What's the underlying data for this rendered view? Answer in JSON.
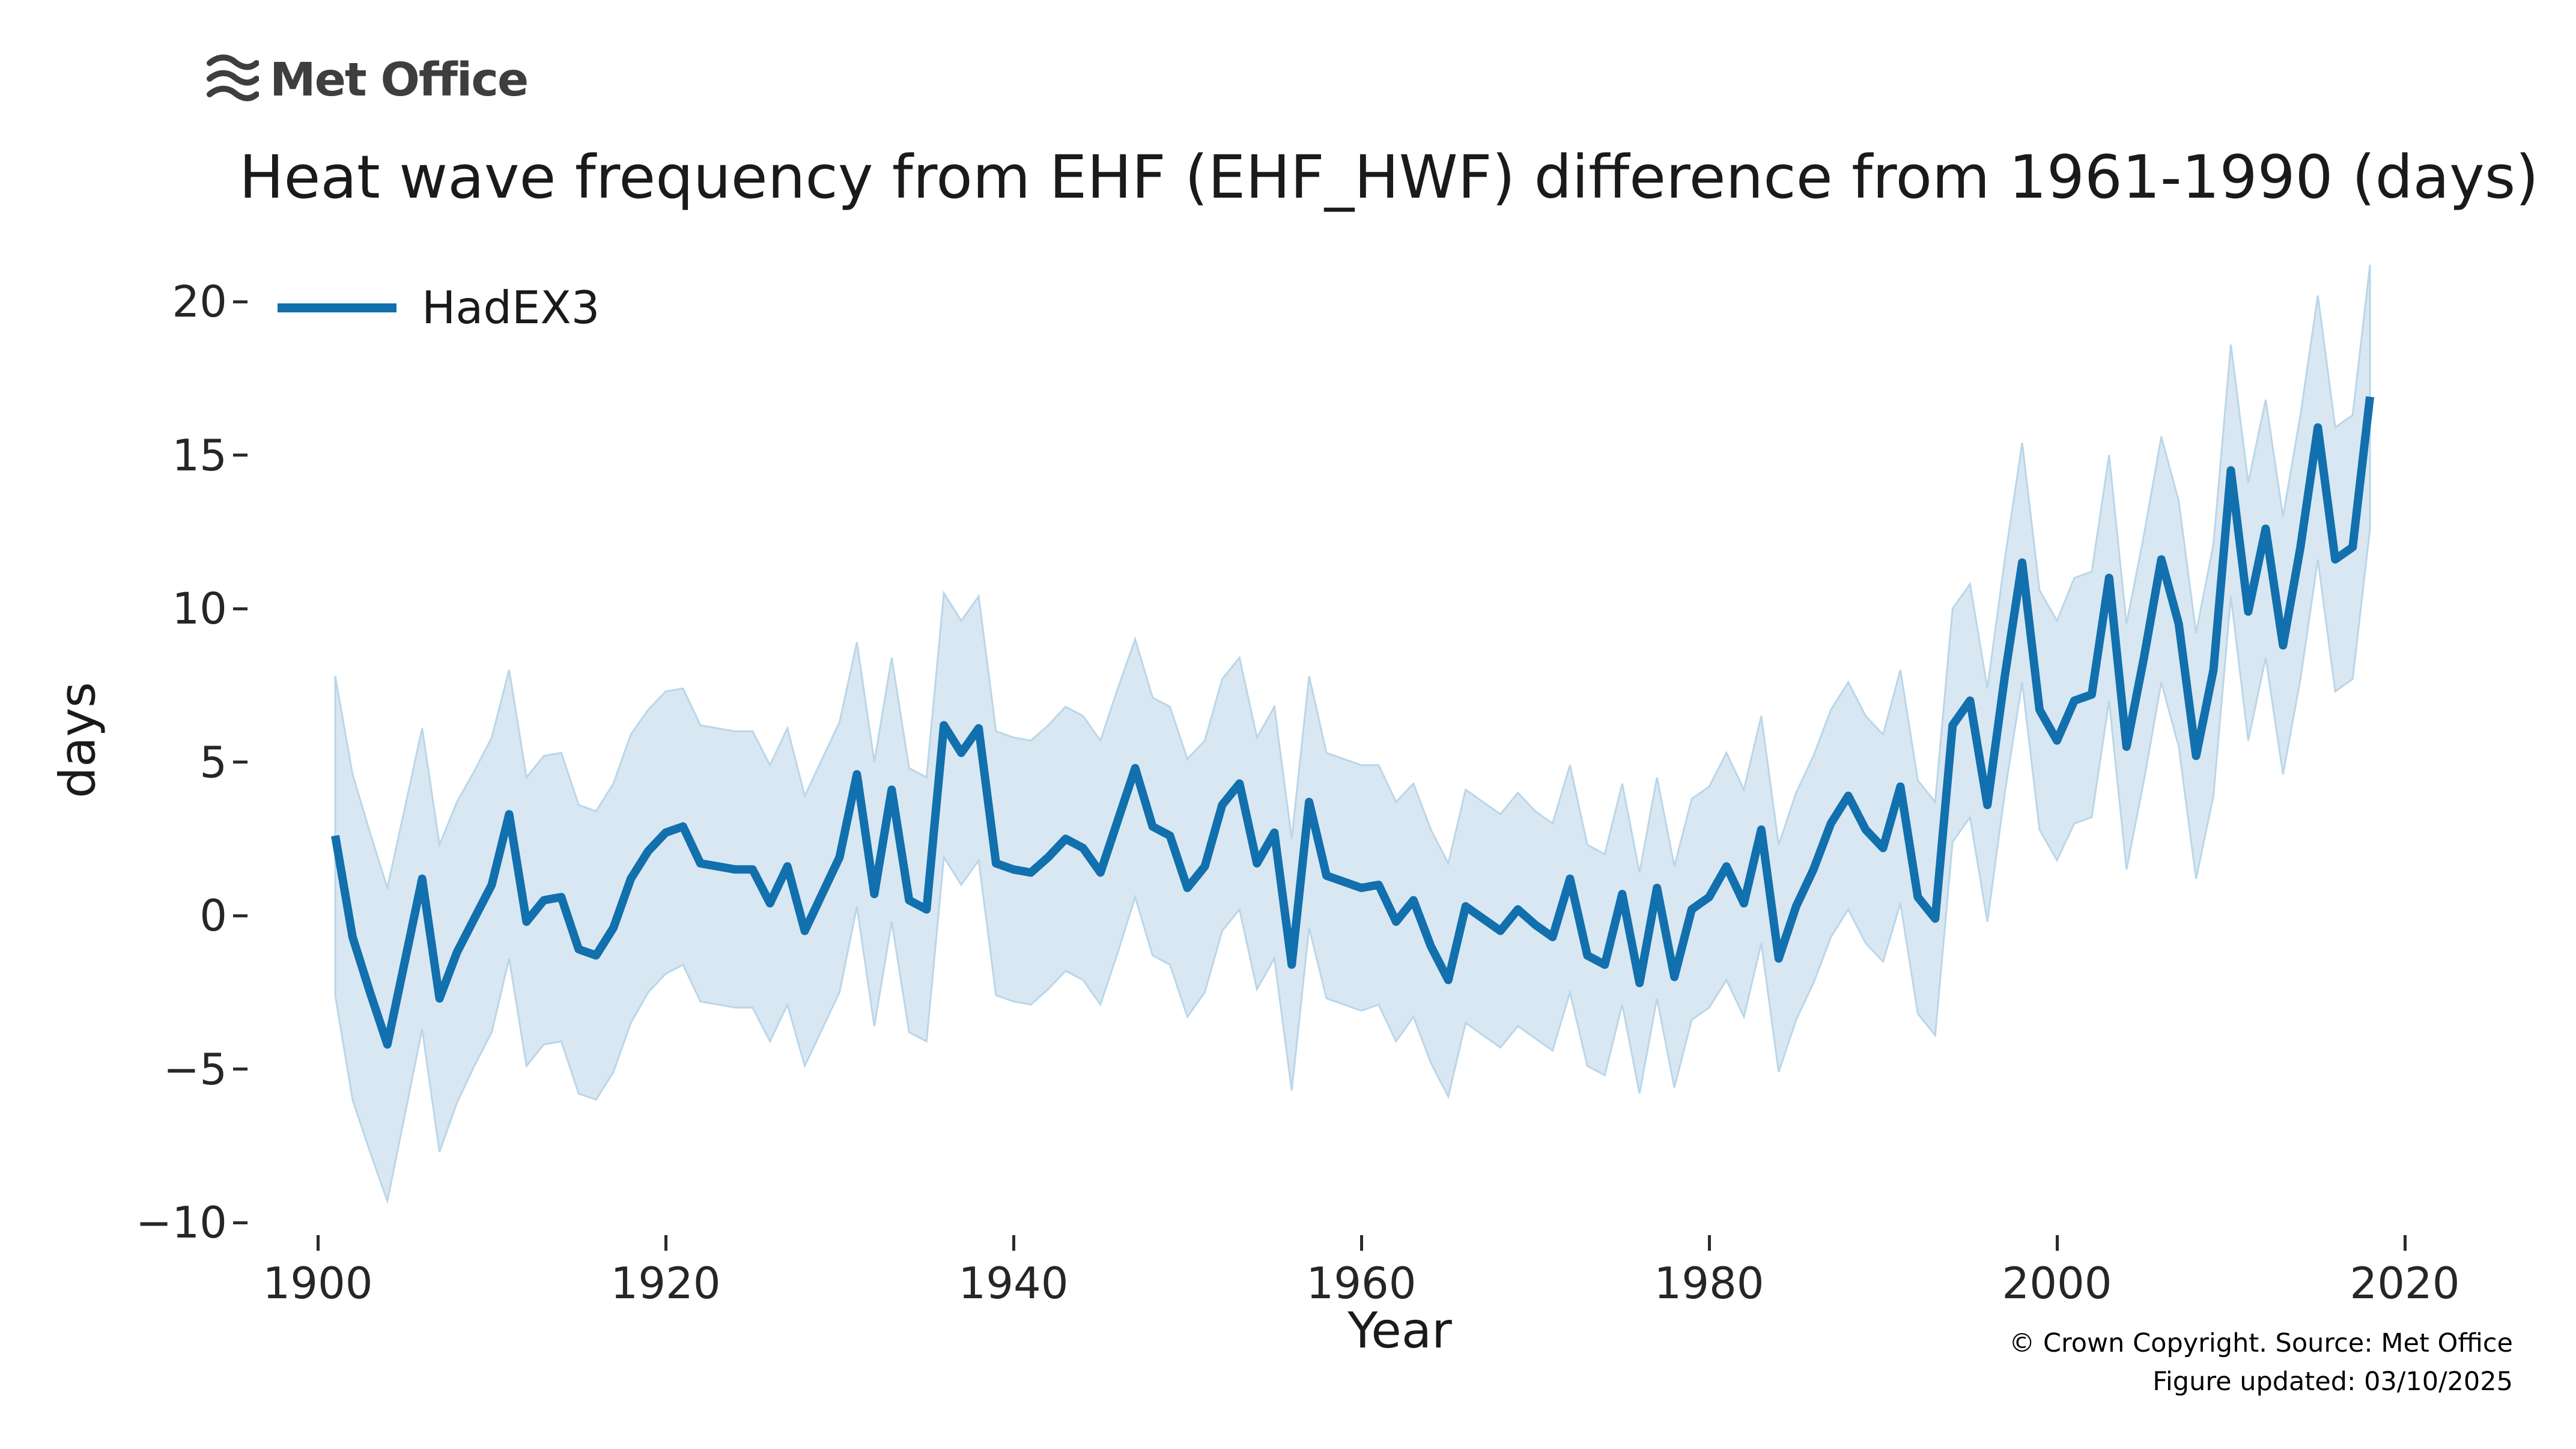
{
  "logo": {
    "text": "Met Office"
  },
  "title": "Heat wave frequency from EHF (EHF_HWF) difference from 1961-1990 (days)",
  "legend": {
    "label": "HadEX3"
  },
  "axes": {
    "xlabel": "Year",
    "ylabel": "days",
    "x_ticks": [
      1900,
      1920,
      1940,
      1960,
      1980,
      2000,
      2020
    ],
    "y_ticks": [
      20,
      15,
      10,
      5,
      0,
      -5,
      -10
    ]
  },
  "footer": {
    "line1": "© Crown Copyright. Source: Met Office",
    "line2": "Figure updated: 03/10/2025"
  },
  "chart_data": {
    "type": "line",
    "title": "Heat wave frequency from EHF (EHF_HWF) difference from 1961-1990 (days)",
    "xlabel": "Year",
    "ylabel": "days",
    "xlim": [
      1895,
      2024
    ],
    "ylim": [
      -10.5,
      21.8
    ],
    "grid": false,
    "legend_position": "upper-left",
    "colors": {
      "line": "#1170ad",
      "band_fill": "#d9e7f2",
      "band_edge": "#bad6e9"
    },
    "series": [
      {
        "name": "HadEX3",
        "x": [
          1901,
          1902,
          1903,
          1904,
          1905,
          1906,
          1907,
          1908,
          1909,
          1910,
          1911,
          1912,
          1913,
          1914,
          1915,
          1916,
          1917,
          1918,
          1919,
          1920,
          1921,
          1922,
          1923,
          1924,
          1925,
          1926,
          1927,
          1928,
          1929,
          1930,
          1931,
          1932,
          1933,
          1934,
          1935,
          1936,
          1937,
          1938,
          1939,
          1940,
          1941,
          1942,
          1943,
          1944,
          1945,
          1946,
          1947,
          1948,
          1949,
          1950,
          1951,
          1952,
          1953,
          1954,
          1955,
          1956,
          1957,
          1958,
          1959,
          1960,
          1961,
          1962,
          1963,
          1964,
          1965,
          1966,
          1967,
          1968,
          1969,
          1970,
          1971,
          1972,
          1973,
          1974,
          1975,
          1976,
          1977,
          1978,
          1979,
          1980,
          1981,
          1982,
          1983,
          1984,
          1985,
          1986,
          1987,
          1988,
          1989,
          1990,
          1991,
          1992,
          1993,
          1994,
          1995,
          1996,
          1997,
          1998,
          1999,
          2000,
          2001,
          2002,
          2003,
          2004,
          2005,
          2006,
          2007,
          2008,
          2009,
          2010,
          2011,
          2012,
          2013,
          2014,
          2015,
          2016,
          2017,
          2018
        ],
        "values": [
          2.6,
          -0.7,
          -2.5,
          -4.2,
          -1.5,
          1.2,
          -2.7,
          -1.2,
          -0.1,
          1.0,
          3.3,
          -0.2,
          0.5,
          0.6,
          -1.1,
          -1.3,
          -0.4,
          1.2,
          2.1,
          2.7,
          2.9,
          1.7,
          1.6,
          1.5,
          1.5,
          0.4,
          1.6,
          -0.5,
          0.7,
          1.9,
          4.6,
          0.7,
          4.1,
          0.5,
          0.2,
          6.2,
          5.3,
          6.1,
          1.7,
          1.5,
          1.4,
          1.9,
          2.5,
          2.2,
          1.4,
          3.1,
          4.8,
          2.9,
          2.6,
          0.9,
          1.6,
          3.6,
          4.3,
          1.7,
          2.7,
          -1.6,
          3.7,
          1.3,
          1.1,
          0.9,
          1.0,
          -0.2,
          0.5,
          -1.0,
          -2.1,
          0.3,
          -0.1,
          -0.5,
          0.2,
          -0.3,
          -0.7,
          1.2,
          -1.3,
          -1.6,
          0.7,
          -2.2,
          0.9,
          -2.0,
          0.2,
          0.6,
          1.6,
          0.4,
          2.8,
          -1.4,
          0.3,
          1.5,
          3.0,
          3.9,
          2.8,
          2.2,
          4.2,
          0.6,
          -0.1,
          6.2,
          7.0,
          3.6,
          7.8,
          11.5,
          6.7,
          5.7,
          7.0,
          7.2,
          11.0,
          5.5,
          8.4,
          11.6,
          9.5,
          5.2,
          8.0,
          14.5,
          9.9,
          12.6,
          8.8,
          12.0,
          15.9,
          11.6,
          12.0,
          16.9
        ],
        "band_halfwidth": [
          5.2,
          5.3,
          5.2,
          5.1,
          5.0,
          4.9,
          5.0,
          4.9,
          4.8,
          4.8,
          4.7,
          4.7,
          4.7,
          4.7,
          4.7,
          4.7,
          4.7,
          4.7,
          4.6,
          4.6,
          4.5,
          4.5,
          4.5,
          4.5,
          4.5,
          4.5,
          4.5,
          4.4,
          4.4,
          4.4,
          4.3,
          4.3,
          4.3,
          4.3,
          4.3,
          4.3,
          4.3,
          4.3,
          4.3,
          4.3,
          4.3,
          4.3,
          4.3,
          4.3,
          4.3,
          4.3,
          4.2,
          4.2,
          4.2,
          4.2,
          4.1,
          4.1,
          4.1,
          4.1,
          4.1,
          4.1,
          4.1,
          4.0,
          4.0,
          4.0,
          3.9,
          3.9,
          3.8,
          3.8,
          3.8,
          3.8,
          3.8,
          3.8,
          3.8,
          3.7,
          3.7,
          3.7,
          3.6,
          3.6,
          3.6,
          3.6,
          3.6,
          3.6,
          3.6,
          3.6,
          3.7,
          3.7,
          3.7,
          3.7,
          3.7,
          3.7,
          3.7,
          3.7,
          3.7,
          3.7,
          3.8,
          3.8,
          3.8,
          3.8,
          3.8,
          3.8,
          3.8,
          3.9,
          3.9,
          3.9,
          4.0,
          4.0,
          4.0,
          4.0,
          4.0,
          4.0,
          4.0,
          4.0,
          4.1,
          4.1,
          4.2,
          4.2,
          4.2,
          4.3,
          4.3,
          4.3,
          4.3,
          4.3
        ]
      }
    ]
  }
}
